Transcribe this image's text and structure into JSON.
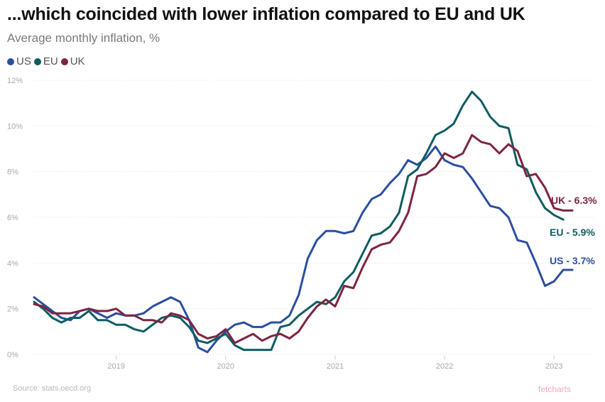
{
  "header": {
    "title": "...which coincided with lower inflation compared to EU and UK",
    "subtitle": "Average monthly inflation, %"
  },
  "footer": {
    "source": "Source: stats.oecd.org",
    "brand": "fetcharts"
  },
  "chart_data": {
    "type": "line",
    "title": "...which coincided with lower inflation compared to EU and UK",
    "subtitle": "Average monthly inflation, %",
    "xlabel": "",
    "ylabel": "",
    "x_range": [
      "2018-10",
      "2023-09"
    ],
    "ylim": [
      0,
      12
    ],
    "y_ticks": [
      0,
      2,
      4,
      6,
      8,
      10,
      12
    ],
    "y_tick_labels": [
      "0%",
      "2%",
      "4%",
      "6%",
      "8%",
      "10%",
      "12%"
    ],
    "x_ticks": [
      "2019-07",
      "2020-07",
      "2021-07",
      "2022-07",
      "2023-07"
    ],
    "x_tick_labels": [
      "2019",
      "2020",
      "2021",
      "2022",
      "2023"
    ],
    "grid": "horizontal dotted",
    "legend_position": "top-left",
    "series": [
      {
        "name": "US",
        "color": "#2a4f9e",
        "end_label": "US - 3.7%",
        "points": [
          [
            "2018-10",
            2.5
          ],
          [
            "2018-11",
            2.2
          ],
          [
            "2018-12",
            1.9
          ],
          [
            "2019-01",
            1.6
          ],
          [
            "2019-02",
            1.5
          ],
          [
            "2019-03",
            1.9
          ],
          [
            "2019-04",
            2.0
          ],
          [
            "2019-05",
            1.8
          ],
          [
            "2019-06",
            1.6
          ],
          [
            "2019-07",
            1.8
          ],
          [
            "2019-08",
            1.7
          ],
          [
            "2019-09",
            1.7
          ],
          [
            "2019-10",
            1.8
          ],
          [
            "2019-11",
            2.1
          ],
          [
            "2019-12",
            2.3
          ],
          [
            "2020-01",
            2.5
          ],
          [
            "2020-02",
            2.3
          ],
          [
            "2020-03",
            1.5
          ],
          [
            "2020-04",
            0.3
          ],
          [
            "2020-05",
            0.1
          ],
          [
            "2020-06",
            0.6
          ],
          [
            "2020-07",
            1.0
          ],
          [
            "2020-08",
            1.3
          ],
          [
            "2020-09",
            1.4
          ],
          [
            "2020-10",
            1.2
          ],
          [
            "2020-11",
            1.2
          ],
          [
            "2020-12",
            1.4
          ],
          [
            "2021-01",
            1.4
          ],
          [
            "2021-02",
            1.7
          ],
          [
            "2021-03",
            2.6
          ],
          [
            "2021-04",
            4.2
          ],
          [
            "2021-05",
            5.0
          ],
          [
            "2021-06",
            5.4
          ],
          [
            "2021-07",
            5.4
          ],
          [
            "2021-08",
            5.3
          ],
          [
            "2021-09",
            5.4
          ],
          [
            "2021-10",
            6.2
          ],
          [
            "2021-11",
            6.8
          ],
          [
            "2021-12",
            7.0
          ],
          [
            "2022-01",
            7.5
          ],
          [
            "2022-02",
            7.9
          ],
          [
            "2022-03",
            8.5
          ],
          [
            "2022-04",
            8.3
          ],
          [
            "2022-05",
            8.6
          ],
          [
            "2022-06",
            9.1
          ],
          [
            "2022-07",
            8.5
          ],
          [
            "2022-08",
            8.3
          ],
          [
            "2022-09",
            8.2
          ],
          [
            "2022-10",
            7.7
          ],
          [
            "2022-11",
            7.1
          ],
          [
            "2022-12",
            6.5
          ],
          [
            "2023-01",
            6.4
          ],
          [
            "2023-02",
            6.0
          ],
          [
            "2023-03",
            5.0
          ],
          [
            "2023-04",
            4.9
          ],
          [
            "2023-05",
            4.0
          ],
          [
            "2023-06",
            3.0
          ],
          [
            "2023-07",
            3.2
          ],
          [
            "2023-08",
            3.7
          ],
          [
            "2023-09",
            3.7
          ]
        ]
      },
      {
        "name": "EU",
        "color": "#0e5c63",
        "end_label": "EU - 5.9%",
        "points": [
          [
            "2018-10",
            2.3
          ],
          [
            "2018-11",
            2.0
          ],
          [
            "2018-12",
            1.6
          ],
          [
            "2019-01",
            1.4
          ],
          [
            "2019-02",
            1.6
          ],
          [
            "2019-03",
            1.6
          ],
          [
            "2019-04",
            1.9
          ],
          [
            "2019-05",
            1.5
          ],
          [
            "2019-06",
            1.5
          ],
          [
            "2019-07",
            1.3
          ],
          [
            "2019-08",
            1.3
          ],
          [
            "2019-09",
            1.1
          ],
          [
            "2019-10",
            1.0
          ],
          [
            "2019-11",
            1.3
          ],
          [
            "2019-12",
            1.6
          ],
          [
            "2020-01",
            1.7
          ],
          [
            "2020-02",
            1.6
          ],
          [
            "2020-03",
            1.2
          ],
          [
            "2020-04",
            0.6
          ],
          [
            "2020-05",
            0.5
          ],
          [
            "2020-06",
            0.7
          ],
          [
            "2020-07",
            0.9
          ],
          [
            "2020-08",
            0.4
          ],
          [
            "2020-09",
            0.2
          ],
          [
            "2020-10",
            0.2
          ],
          [
            "2020-11",
            0.2
          ],
          [
            "2020-12",
            0.2
          ],
          [
            "2021-01",
            1.2
          ],
          [
            "2021-02",
            1.3
          ],
          [
            "2021-03",
            1.7
          ],
          [
            "2021-04",
            2.0
          ],
          [
            "2021-05",
            2.3
          ],
          [
            "2021-06",
            2.2
          ],
          [
            "2021-07",
            2.5
          ],
          [
            "2021-08",
            3.2
          ],
          [
            "2021-09",
            3.6
          ],
          [
            "2021-10",
            4.4
          ],
          [
            "2021-11",
            5.2
          ],
          [
            "2021-12",
            5.3
          ],
          [
            "2022-01",
            5.6
          ],
          [
            "2022-02",
            6.2
          ],
          [
            "2022-03",
            7.8
          ],
          [
            "2022-04",
            8.1
          ],
          [
            "2022-05",
            8.8
          ],
          [
            "2022-06",
            9.6
          ],
          [
            "2022-07",
            9.8
          ],
          [
            "2022-08",
            10.1
          ],
          [
            "2022-09",
            10.9
          ],
          [
            "2022-10",
            11.5
          ],
          [
            "2022-11",
            11.1
          ],
          [
            "2022-12",
            10.4
          ],
          [
            "2023-01",
            10.0
          ],
          [
            "2023-02",
            9.9
          ],
          [
            "2023-03",
            8.3
          ],
          [
            "2023-04",
            8.1
          ],
          [
            "2023-05",
            7.1
          ],
          [
            "2023-06",
            6.4
          ],
          [
            "2023-07",
            6.1
          ],
          [
            "2023-08",
            5.9
          ]
        ]
      },
      {
        "name": "UK",
        "color": "#7d2440",
        "end_label": "UK - 6.3%",
        "points": [
          [
            "2018-10",
            2.2
          ],
          [
            "2018-11",
            2.1
          ],
          [
            "2018-12",
            1.8
          ],
          [
            "2019-01",
            1.8
          ],
          [
            "2019-02",
            1.8
          ],
          [
            "2019-03",
            1.9
          ],
          [
            "2019-04",
            2.0
          ],
          [
            "2019-05",
            1.9
          ],
          [
            "2019-06",
            1.9
          ],
          [
            "2019-07",
            2.0
          ],
          [
            "2019-08",
            1.7
          ],
          [
            "2019-09",
            1.7
          ],
          [
            "2019-10",
            1.5
          ],
          [
            "2019-11",
            1.5
          ],
          [
            "2019-12",
            1.4
          ],
          [
            "2020-01",
            1.8
          ],
          [
            "2020-02",
            1.7
          ],
          [
            "2020-03",
            1.5
          ],
          [
            "2020-04",
            0.9
          ],
          [
            "2020-05",
            0.7
          ],
          [
            "2020-06",
            0.8
          ],
          [
            "2020-07",
            1.1
          ],
          [
            "2020-08",
            0.5
          ],
          [
            "2020-09",
            0.7
          ],
          [
            "2020-10",
            0.9
          ],
          [
            "2020-11",
            0.6
          ],
          [
            "2020-12",
            0.8
          ],
          [
            "2021-01",
            0.9
          ],
          [
            "2021-02",
            0.7
          ],
          [
            "2021-03",
            1.0
          ],
          [
            "2021-04",
            1.6
          ],
          [
            "2021-05",
            2.1
          ],
          [
            "2021-06",
            2.4
          ],
          [
            "2021-07",
            2.1
          ],
          [
            "2021-08",
            3.0
          ],
          [
            "2021-09",
            2.9
          ],
          [
            "2021-10",
            3.8
          ],
          [
            "2021-11",
            4.6
          ],
          [
            "2021-12",
            4.8
          ],
          [
            "2022-01",
            4.9
          ],
          [
            "2022-02",
            5.4
          ],
          [
            "2022-03",
            6.2
          ],
          [
            "2022-04",
            7.8
          ],
          [
            "2022-05",
            7.9
          ],
          [
            "2022-06",
            8.2
          ],
          [
            "2022-07",
            8.8
          ],
          [
            "2022-08",
            8.6
          ],
          [
            "2022-09",
            8.8
          ],
          [
            "2022-10",
            9.6
          ],
          [
            "2022-11",
            9.3
          ],
          [
            "2022-12",
            9.2
          ],
          [
            "2023-01",
            8.8
          ],
          [
            "2023-02",
            9.2
          ],
          [
            "2023-03",
            8.9
          ],
          [
            "2023-04",
            7.8
          ],
          [
            "2023-05",
            7.9
          ],
          [
            "2023-06",
            7.3
          ],
          [
            "2023-07",
            6.4
          ],
          [
            "2023-08",
            6.3
          ],
          [
            "2023-09",
            6.3
          ]
        ]
      }
    ]
  }
}
